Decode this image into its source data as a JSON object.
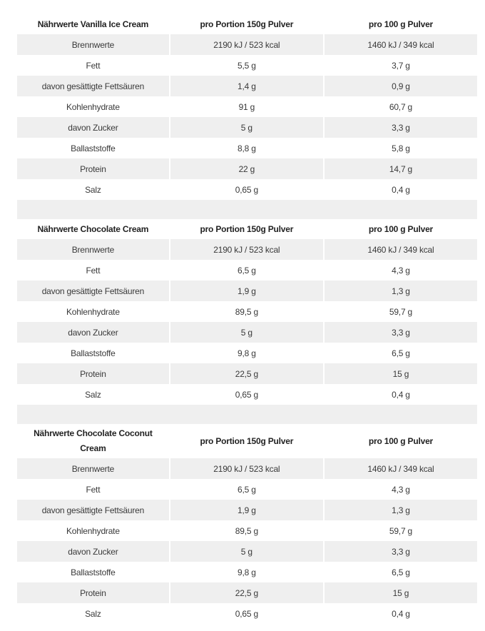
{
  "tables": [
    {
      "headers": [
        "Nährwerte Vanilla Ice Cream",
        "pro Portion 150g Pulver",
        "pro 100 g Pulver"
      ],
      "rows": [
        [
          "Brennwerte",
          "2190 kJ / 523 kcal",
          "1460 kJ / 349 kcal"
        ],
        [
          "Fett",
          "5,5 g",
          "3,7 g"
        ],
        [
          "davon gesättigte Fettsäuren",
          "1,4 g",
          "0,9 g"
        ],
        [
          "Kohlenhydrate",
          "91 g",
          "60,7 g"
        ],
        [
          "davon Zucker",
          "5 g",
          "3,3 g"
        ],
        [
          "Ballaststoffe",
          "8,8 g",
          "5,8 g"
        ],
        [
          "Protein",
          "22 g",
          "14,7 g"
        ],
        [
          "Salz",
          "0,65 g",
          "0,4 g"
        ]
      ]
    },
    {
      "headers": [
        "Nährwerte Chocolate Cream",
        "pro Portion 150g Pulver",
        "pro 100 g Pulver"
      ],
      "rows": [
        [
          "Brennwerte",
          "2190 kJ / 523 kcal",
          "1460 kJ / 349 kcal"
        ],
        [
          "Fett",
          "6,5 g",
          "4,3 g"
        ],
        [
          "davon gesättigte Fettsäuren",
          "1,9 g",
          "1,3 g"
        ],
        [
          "Kohlenhydrate",
          "89,5 g",
          "59,7 g"
        ],
        [
          "davon Zucker",
          "5 g",
          "3,3 g"
        ],
        [
          "Ballaststoffe",
          "9,8 g",
          "6,5 g"
        ],
        [
          "Protein",
          "22,5 g",
          "15 g"
        ],
        [
          "Salz",
          "0,65 g",
          "0,4 g"
        ]
      ]
    },
    {
      "headers": [
        "Nährwerte Chocolate Coconut Cream",
        "pro Portion 150g Pulver",
        "pro 100 g Pulver"
      ],
      "rows": [
        [
          "Brennwerte",
          "2190 kJ / 523 kcal",
          "1460 kJ / 349 kcal"
        ],
        [
          "Fett",
          "6,5 g",
          "4,3 g"
        ],
        [
          "davon gesättigte Fettsäuren",
          "1,9 g",
          "1,3 g"
        ],
        [
          "Kohlenhydrate",
          "89,5 g",
          "59,7 g"
        ],
        [
          "davon Zucker",
          "5 g",
          "3,3 g"
        ],
        [
          "Ballaststoffe",
          "9,8 g",
          "6,5 g"
        ],
        [
          "Protein",
          "22,5 g",
          "15 g"
        ],
        [
          "Salz",
          "0,65 g",
          "0,4 g"
        ]
      ]
    }
  ]
}
